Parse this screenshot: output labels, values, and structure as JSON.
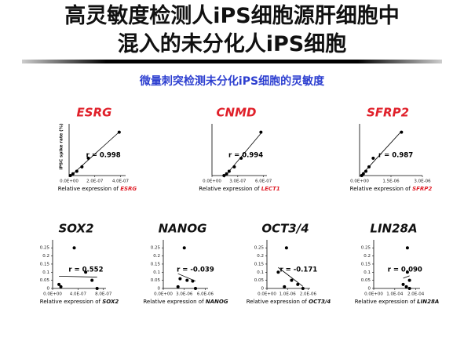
{
  "header": {
    "title_line1": "高灵敏度检测人iPS细胞源肝细胞中",
    "title_line2": "混入的未分化人iPS细胞",
    "subtitle": "微量刺突检测未分化iPS细胞的灵敏度"
  },
  "chart_data": [
    {
      "type": "scatter",
      "title": "ESRG",
      "title_color": "#e0202a",
      "ylabel": "iPSC spike rate (%)",
      "annotation": "r = 0.998",
      "xlabel": "Relative expression of",
      "xlabel_gene": "ESRG",
      "color": "#000",
      "x": [
        3.9e-07,
        1.5e-07,
        1e-07,
        6e-08,
        3e-08,
        1e-08
      ],
      "values": [
        0.25,
        0.1,
        0.05,
        0.025,
        0.01,
        0
      ],
      "xlim": [
        0,
        4.4e-07
      ],
      "ylim": [
        0,
        0.28
      ],
      "xticks": [
        {
          "value": 0,
          "label": "0.0E+00"
        },
        {
          "value": 2e-07,
          "label": "2.0E-07"
        },
        {
          "value": 4e-07,
          "label": "4.0E-07"
        }
      ]
    },
    {
      "type": "scatter",
      "title": "CNMD",
      "title_color": "#e0202a",
      "annotation": "r = 0.994",
      "xlabel": "Relative expression of",
      "xlabel_gene": "LECT1",
      "color": "#000",
      "x": [
        5.7e-07,
        3.4e-07,
        2.6e-07,
        2e-07,
        1.7e-07,
        1.4e-07
      ],
      "values": [
        0.25,
        0.1,
        0.05,
        0.025,
        0.01,
        0
      ],
      "xlim": [
        0,
        6.4e-07
      ],
      "ylim": [
        0,
        0.28
      ],
      "xticks": [
        {
          "value": 0,
          "label": "0.0E+00"
        },
        {
          "value": 3e-07,
          "label": "3.0E-07"
        },
        {
          "value": 6e-07,
          "label": "6.0E-07"
        }
      ]
    },
    {
      "type": "scatter",
      "title": "SFRP2",
      "title_color": "#e0202a",
      "annotation": "r = 0.987",
      "xlabel": "Relative expression of",
      "xlabel_gene": "SFRP2",
      "color": "#000",
      "x": [
        2e-06,
        6.5e-07,
        4.5e-07,
        3e-07,
        1.8e-07,
        1e-07
      ],
      "values": [
        0.25,
        0.1,
        0.05,
        0.025,
        0.01,
        0
      ],
      "xlim": [
        0,
        3e-06
      ],
      "ylim": [
        0,
        0.28
      ],
      "xticks": [
        {
          "value": 0,
          "label": "0.0E+00"
        },
        {
          "value": 1.5e-06,
          "label": "1.5E-06"
        },
        {
          "value": 3e-06,
          "label": "3.0E-06"
        }
      ]
    },
    {
      "type": "scatter",
      "title": "SOX2",
      "title_color": "#111",
      "annotation": "r = 0.552",
      "xlabel": "Relative expression of",
      "xlabel_gene": "SOX2",
      "color": "#000",
      "x": [
        3.4e-07,
        5.2e-07,
        6.2e-07,
        1e-07,
        1.3e-07,
        7e-07
      ],
      "values": [
        0.25,
        0.1,
        0.05,
        0.025,
        0.01,
        0
      ],
      "xlim": [
        0,
        8.4e-07
      ],
      "ylim": [
        0,
        0.28
      ],
      "yticks": [
        0,
        0.05,
        0.1,
        0.15,
        0.2,
        0.25
      ],
      "xticks": [
        {
          "value": 0,
          "label": "0.0E+00"
        },
        {
          "value": 4e-07,
          "label": "4.0E-07"
        },
        {
          "value": 8e-07,
          "label": "8.0E-07"
        }
      ]
    },
    {
      "type": "scatter",
      "title": "NANOG",
      "title_color": "#111",
      "annotation": "r = -0.039",
      "xlabel": "Relative expression of",
      "xlabel_gene": "NANOG",
      "color": "#000",
      "x": [
        3e-06,
        3.4e-06,
        2.4e-06,
        4.2e-06,
        2.1e-06,
        4.6e-06
      ],
      "values": [
        0.25,
        0.05,
        0.06,
        0.045,
        0.01,
        0
      ],
      "xlim": [
        0,
        6.4e-06
      ],
      "ylim": [
        0,
        0.28
      ],
      "yticks": [
        0,
        0.05,
        0.1,
        0.15,
        0.2,
        0.25
      ],
      "xticks": [
        {
          "value": 0,
          "label": "0.0E+00"
        },
        {
          "value": 3e-06,
          "label": "3.0E-06"
        },
        {
          "value": 6e-06,
          "label": "6.0E-06"
        }
      ]
    },
    {
      "type": "scatter",
      "title": "OCT3/4",
      "title_color": "#111",
      "annotation": "r = -0.171",
      "xlabel": "Relative expression of",
      "xlabel_gene": "OCT3/4",
      "color": "#000",
      "x": [
        9.5e-07,
        5.5e-07,
        1.2e-06,
        1.5e-06,
        8.5e-07,
        1.75e-06
      ],
      "values": [
        0.25,
        0.1,
        0.05,
        0.025,
        0.01,
        0
      ],
      "xlim": [
        0,
        2.1e-06
      ],
      "ylim": [
        0,
        0.28
      ],
      "yticks": [
        0,
        0.05,
        0.1,
        0.15,
        0.2,
        0.25
      ],
      "xticks": [
        {
          "value": 0,
          "label": "0.0E+00"
        },
        {
          "value": 1e-06,
          "label": "1.0E-06"
        },
        {
          "value": 2e-06,
          "label": "2.0E-06"
        }
      ]
    },
    {
      "type": "scatter",
      "title": "LIN28A",
      "title_color": "#111",
      "annotation": "r = 0.090",
      "xlabel": "Relative expression of",
      "xlabel_gene": "LIN28A",
      "color": "#000",
      "x": [
        0.00016,
        0.00016,
        0.00017,
        0.00014,
        0.000155,
        0.00017
      ],
      "values": [
        0.25,
        0.1,
        0.05,
        0.025,
        0.01,
        0
      ],
      "xlim": [
        0,
        0.00022
      ],
      "ylim": [
        0,
        0.28
      ],
      "yticks": [
        0,
        0.05,
        0.1,
        0.15,
        0.2,
        0.25
      ],
      "xticks": [
        {
          "value": 0,
          "label": "0.0E+00"
        },
        {
          "value": 0.0001,
          "label": "1.0E-04"
        },
        {
          "value": 0.0002,
          "label": "2.0E-04"
        }
      ]
    }
  ]
}
